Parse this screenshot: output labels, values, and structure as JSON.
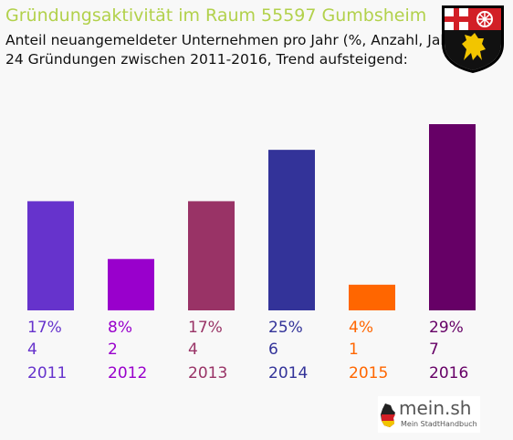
{
  "header": {
    "title": "Gründungsaktivität im Raum 55597 Gumbsheim",
    "subtitle_line1": "Anteil neuangemeldeter Unternehmen pro Jahr (%, Anzahl, Jahr)",
    "subtitle_line2": "24 Gründungen zwischen 2011-2016, Trend aufsteigend:"
  },
  "logo": {
    "name": "mein.sh",
    "tagline": "Mein StadtHandbuch"
  },
  "chart_data": {
    "type": "bar",
    "categories": [
      "2011",
      "2012",
      "2013",
      "2014",
      "2015",
      "2016"
    ],
    "values": [
      17,
      8,
      17,
      25,
      4,
      29
    ],
    "value_labels": [
      "17%",
      "8%",
      "17%",
      "25%",
      "4%",
      "29%"
    ],
    "counts": [
      "4",
      "2",
      "4",
      "6",
      "1",
      "7"
    ],
    "colors": [
      "#6633cc",
      "#9900cc",
      "#993366",
      "#333399",
      "#ff6600",
      "#660066"
    ],
    "ylim": [
      0,
      29
    ],
    "grid": false
  }
}
